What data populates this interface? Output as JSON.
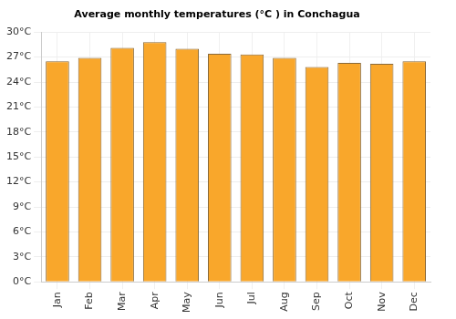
{
  "chart_data": {
    "type": "bar",
    "title": "Average monthly temperatures (°C ) in Conchagua",
    "categories": [
      "Jan",
      "Feb",
      "Mar",
      "Apr",
      "May",
      "Jun",
      "Jul",
      "Aug",
      "Sep",
      "Oct",
      "Nov",
      "Dec"
    ],
    "values": [
      26.5,
      26.9,
      28.1,
      28.8,
      28.0,
      27.4,
      27.3,
      26.9,
      25.8,
      26.3,
      26.2,
      26.5
    ],
    "color": "#f9a72b",
    "ylim": [
      0,
      30
    ],
    "yticks": [
      {
        "value": 0,
        "label": "0°C"
      },
      {
        "value": 3,
        "label": "3°C"
      },
      {
        "value": 6,
        "label": "6°C"
      },
      {
        "value": 9,
        "label": "9°C"
      },
      {
        "value": 12,
        "label": "12°C"
      },
      {
        "value": 15,
        "label": "15°C"
      },
      {
        "value": 18,
        "label": "18°C"
      },
      {
        "value": 21,
        "label": "21°C"
      },
      {
        "value": 24,
        "label": "24°C"
      },
      {
        "value": 27,
        "label": "27°C"
      },
      {
        "value": 30,
        "label": "30°C"
      }
    ],
    "grid": true
  }
}
